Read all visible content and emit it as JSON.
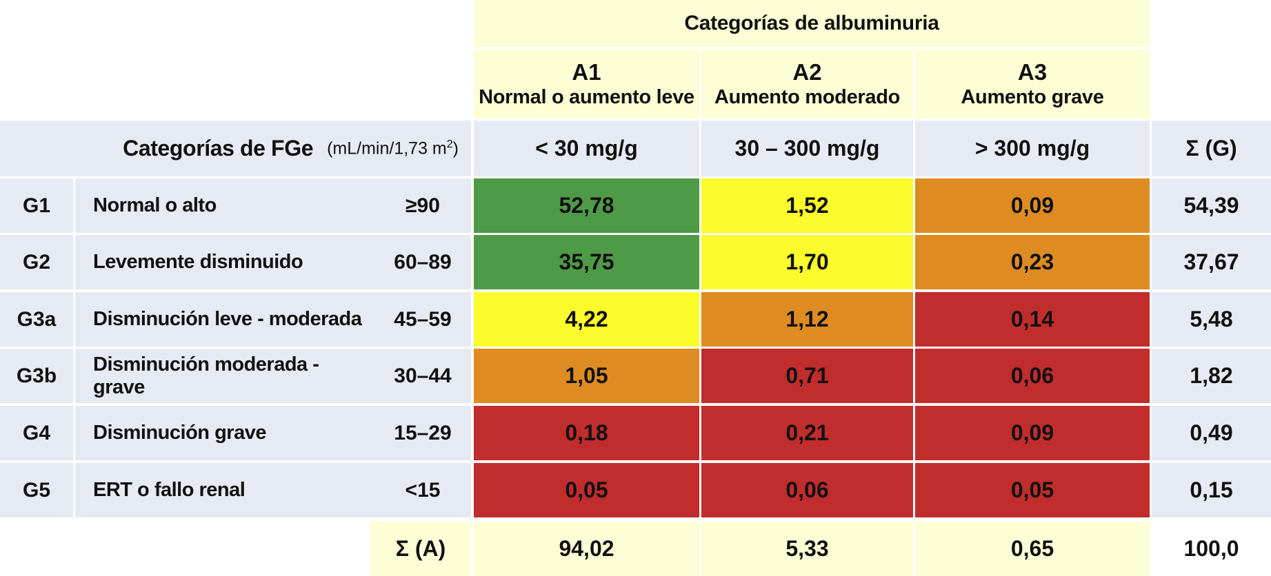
{
  "header": {
    "albuminuria_title": "Categorías de albuminuria",
    "columns": [
      {
        "code": "A1",
        "desc": "Normal o aumento leve",
        "threshold": "< 30 mg/g"
      },
      {
        "code": "A2",
        "desc": "Aumento moderado",
        "threshold": "30 – 300 mg/g"
      },
      {
        "code": "A3",
        "desc": "Aumento grave",
        "threshold": "> 300 mg/g"
      }
    ],
    "fge_title": "Categorías de FGe",
    "fge_unit": "(mL/min/1,73  m",
    "fge_unit_sup": "2",
    "fge_unit_close": ")",
    "sum_g_label": "Σ (G)",
    "sum_a_label": "Σ (A)"
  },
  "chart_data": {
    "type": "table",
    "rows": [
      {
        "code": "G1",
        "label": "Normal o alto",
        "range": "≥90",
        "values": [
          "52,78",
          "1,52",
          "0,09"
        ],
        "colors": [
          "#4e9a47",
          "#fcfc2c",
          "#de8c22"
        ],
        "sum": "54,39"
      },
      {
        "code": "G2",
        "label": "Levemente disminuido",
        "range": "60–89",
        "values": [
          "35,75",
          "1,70",
          "0,23"
        ],
        "colors": [
          "#4e9a47",
          "#fcfc2c",
          "#de8c22"
        ],
        "sum": "37,67"
      },
      {
        "code": "G3a",
        "label": "Disminución leve - moderada",
        "range": "45–59",
        "values": [
          "4,22",
          "1,12",
          "0,14"
        ],
        "colors": [
          "#fcfc2c",
          "#de8c22",
          "#c12c2c"
        ],
        "sum": "5,48"
      },
      {
        "code": "G3b",
        "label": "Disminución moderada - grave",
        "range": "30–44",
        "values": [
          "1,05",
          "0,71",
          "0,06"
        ],
        "colors": [
          "#de8c22",
          "#c12c2c",
          "#c12c2c"
        ],
        "sum": "1,82"
      },
      {
        "code": "G4",
        "label": "Disminución grave",
        "range": "15–29",
        "values": [
          "0,18",
          "0,21",
          "0,09"
        ],
        "colors": [
          "#c12c2c",
          "#c12c2c",
          "#c12c2c"
        ],
        "sum": "0,49"
      },
      {
        "code": "G5",
        "label": "ERT o fallo renal",
        "range": "<15",
        "values": [
          "0,05",
          "0,06",
          "0,05"
        ],
        "colors": [
          "#c12c2c",
          "#c12c2c",
          "#c12c2c"
        ],
        "sum": "0,15"
      }
    ],
    "column_sums": [
      "94,02",
      "5,33",
      "0,65"
    ],
    "total": "100,0"
  }
}
